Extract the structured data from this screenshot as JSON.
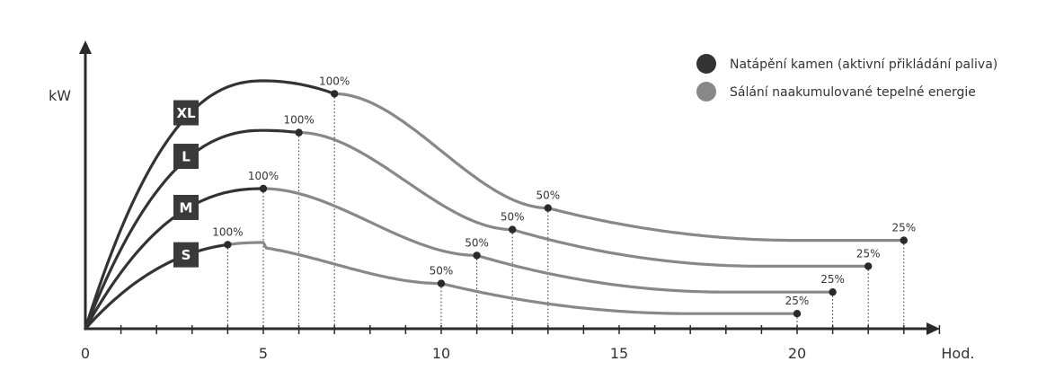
{
  "chart_data": {
    "type": "line",
    "title": "",
    "xlabel": "Hod.",
    "ylabel": "kW",
    "xlim": [
      0,
      24
    ],
    "ylim": [
      0,
      12
    ],
    "x_ticks": [
      0,
      5,
      10,
      15,
      20
    ],
    "x_minor_ticks": [
      1,
      2,
      3,
      4,
      5,
      6,
      7,
      8,
      9,
      10,
      11,
      12,
      13,
      14,
      15,
      16,
      17,
      18,
      19,
      20,
      21,
      22,
      23,
      24
    ],
    "grid": false,
    "legend": [
      {
        "label": "Natápění kamen (aktivní přikládání paliva)",
        "color": "#333333"
      },
      {
        "label": "Sálání naakumulované tepelné energie",
        "color": "#888888"
      }
    ],
    "legend_position": "top-right",
    "colors": {
      "active": "#333333",
      "accumulated": "#888888",
      "axis": "#2a2a2a",
      "badge": "#3a3a3a"
    },
    "series": [
      {
        "name": "XL",
        "peak": 11.5,
        "peak_x": 5,
        "points": [
          {
            "x": 7,
            "y": 10.9,
            "label": "100%"
          },
          {
            "x": 13,
            "y": 5.6,
            "label": "50%"
          },
          {
            "x": 23,
            "y": 4.1,
            "label": "25%"
          }
        ]
      },
      {
        "name": "L",
        "peak": 9.2,
        "peak_x": 5,
        "points": [
          {
            "x": 6,
            "y": 9.1,
            "label": "100%"
          },
          {
            "x": 12,
            "y": 4.6,
            "label": "50%"
          },
          {
            "x": 22,
            "y": 2.9,
            "label": "25%"
          }
        ]
      },
      {
        "name": "M",
        "peak": 6.5,
        "peak_x": 5,
        "points": [
          {
            "x": 5,
            "y": 6.5,
            "label": "100%"
          },
          {
            "x": 11,
            "y": 3.4,
            "label": "50%"
          },
          {
            "x": 21,
            "y": 1.7,
            "label": "25%"
          }
        ]
      },
      {
        "name": "S",
        "peak": 4.0,
        "peak_x": 5,
        "points": [
          {
            "x": 4,
            "y": 3.9,
            "label": "100%"
          },
          {
            "x": 10,
            "y": 2.1,
            "label": "50%"
          },
          {
            "x": 20,
            "y": 0.7,
            "label": "25%"
          }
        ]
      }
    ]
  }
}
